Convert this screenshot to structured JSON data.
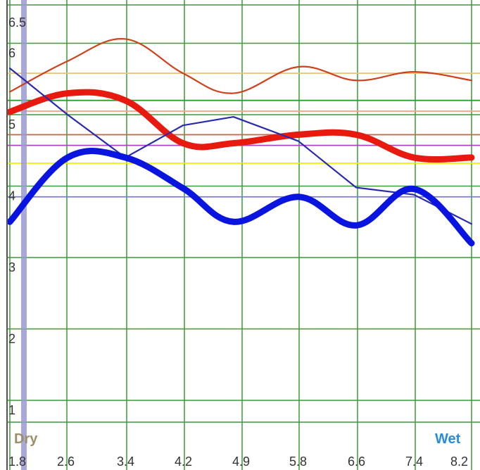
{
  "chart_data": {
    "type": "line",
    "ylim": [
      0.7,
      6.7
    ],
    "xlim": [
      1.8,
      8.2
    ],
    "y_ticks": [
      "6.5",
      "6",
      "5",
      "4",
      "3",
      "2",
      "1"
    ],
    "y_tick_values": [
      6.5,
      6,
      5,
      4,
      3,
      2,
      1
    ],
    "x_ticks": [
      "1.8",
      "2.6",
      "3.4",
      "4.2",
      "4.9",
      "5.8",
      "6.6",
      "7.4",
      "8.2"
    ],
    "x_tick_values": [
      1.8,
      2.6,
      3.4,
      4.2,
      4.9,
      5.8,
      6.6,
      7.4,
      8.2
    ],
    "left_end_label": "Dry",
    "right_end_label": "Wet",
    "grid": true,
    "colors": {
      "grid": "#3a9a3a",
      "red": "#e81a10",
      "red_thin": "#d0401c",
      "blue": "#0a14e0",
      "blue_thin": "#2a2ab0",
      "marker": "#9a9ad0",
      "ref_tan": "#e8c27a",
      "ref_orange": "#f0a888",
      "ref_brown": "#c86a48",
      "ref_magenta": "#b040c8",
      "ref_yellow": "#f0f000",
      "ref_purple": "#7a7ae0",
      "ref_green": "#28a028"
    },
    "reference_lines": [
      {
        "y": 5.58,
        "color": "ref_tan"
      },
      {
        "y": 5.2,
        "color": "ref_green"
      },
      {
        "y": 5.05,
        "color": "ref_orange"
      },
      {
        "y": 4.72,
        "color": "ref_brown"
      },
      {
        "y": 4.57,
        "color": "ref_magenta"
      },
      {
        "y": 4.32,
        "color": "ref_yellow"
      },
      {
        "y": 3.85,
        "color": "ref_purple"
      }
    ],
    "series": [
      {
        "style": "thin",
        "color": "red_thin",
        "x": [
          1.8,
          2.6,
          3.4,
          4.2,
          4.9,
          5.8,
          6.6,
          7.4,
          8.2
        ],
        "y": [
          5.32,
          5.75,
          6.06,
          5.58,
          5.3,
          5.67,
          5.48,
          5.6,
          5.48
        ]
      },
      {
        "style": "thick",
        "color": "red",
        "x": [
          1.8,
          2.6,
          3.4,
          4.2,
          4.9,
          5.8,
          6.6,
          7.4,
          8.2
        ],
        "y": [
          5.04,
          5.3,
          5.2,
          4.6,
          4.6,
          4.72,
          4.72,
          4.4,
          4.4
        ]
      },
      {
        "style": "thin",
        "color": "blue_thin",
        "x": [
          1.8,
          2.6,
          3.4,
          4.2,
          4.9,
          5.8,
          6.6,
          7.4,
          8.2
        ],
        "y": [
          5.65,
          5.0,
          4.4,
          4.85,
          4.97,
          4.63,
          3.98,
          3.88,
          3.47
        ]
      },
      {
        "style": "thick",
        "color": "blue",
        "x": [
          1.8,
          2.6,
          3.4,
          4.2,
          4.9,
          5.8,
          6.6,
          7.4,
          8.2
        ],
        "y": [
          3.5,
          4.4,
          4.4,
          3.97,
          3.5,
          3.85,
          3.45,
          3.96,
          3.2
        ]
      }
    ]
  }
}
